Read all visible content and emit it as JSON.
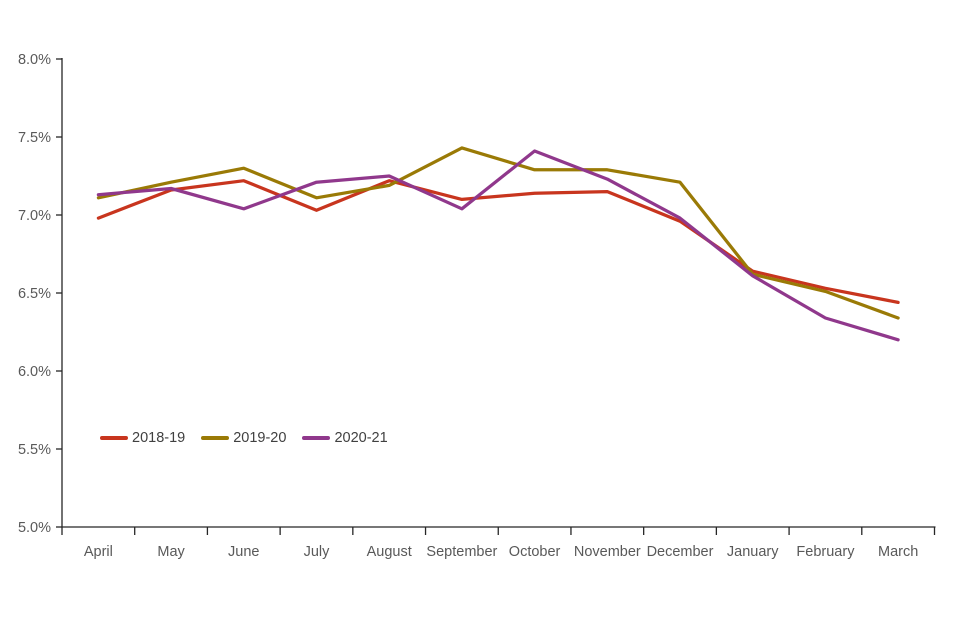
{
  "chart_data": {
    "type": "line",
    "title": "",
    "xlabel": "",
    "ylabel": "",
    "x": [
      "April",
      "May",
      "June",
      "July",
      "August",
      "September",
      "October",
      "November",
      "December",
      "January",
      "February",
      "March"
    ],
    "series": [
      {
        "name": "2018-19",
        "color": "#C8351E",
        "values": [
          6.98,
          7.16,
          7.22,
          7.03,
          7.22,
          7.1,
          7.14,
          7.15,
          6.96,
          6.64,
          6.53,
          6.44
        ]
      },
      {
        "name": "2019-20",
        "color": "#9A7A06",
        "values": [
          7.11,
          7.21,
          7.3,
          7.11,
          7.19,
          7.43,
          7.29,
          7.29,
          7.21,
          6.62,
          6.51,
          6.34
        ]
      },
      {
        "name": "2020-21",
        "color": "#90388C",
        "values": [
          7.13,
          7.17,
          7.04,
          7.21,
          7.25,
          7.04,
          7.41,
          7.23,
          6.98,
          6.61,
          6.34,
          6.2
        ]
      }
    ],
    "ylim": [
      5.0,
      8.0
    ],
    "ytick_step": 0.5,
    "ytick_labels": [
      "5.0%",
      "5.5%",
      "6.0%",
      "6.5%",
      "7.0%",
      "7.5%",
      "8.0%"
    ],
    "grid": false,
    "legend_position": "inside-left-middle"
  },
  "style": {
    "axis_color": "#262626",
    "tick_label_color": "#595959",
    "legend_text_color": "#404040",
    "line_width": 3.25
  }
}
